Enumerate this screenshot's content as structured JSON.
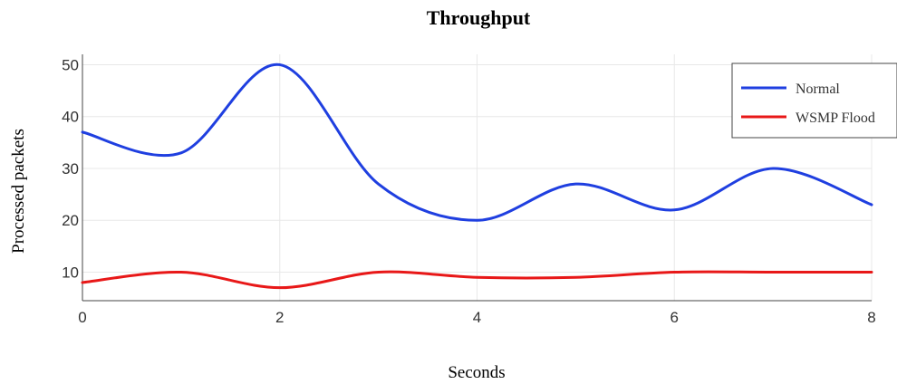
{
  "chart_data": {
    "type": "line",
    "title": "Throughput",
    "xlabel": "Seconds",
    "ylabel": "Processed packets",
    "xlim": [
      0,
      8
    ],
    "ylim": [
      4.5,
      52
    ],
    "xticks": [
      0,
      2,
      4,
      6,
      8
    ],
    "yticks": [
      10,
      20,
      30,
      40,
      50
    ],
    "grid": true,
    "legend_position": "top-right",
    "x": [
      0,
      1,
      2,
      3,
      4,
      5,
      6,
      7,
      8
    ],
    "series": [
      {
        "name": "Normal",
        "color": "#1f3fe0",
        "values": [
          37,
          33,
          50,
          27,
          20,
          27,
          22,
          30,
          23
        ]
      },
      {
        "name": "WSMP Flood",
        "color": "#e81818",
        "values": [
          8,
          10,
          7,
          10,
          9,
          9,
          10,
          10,
          10
        ]
      }
    ]
  }
}
